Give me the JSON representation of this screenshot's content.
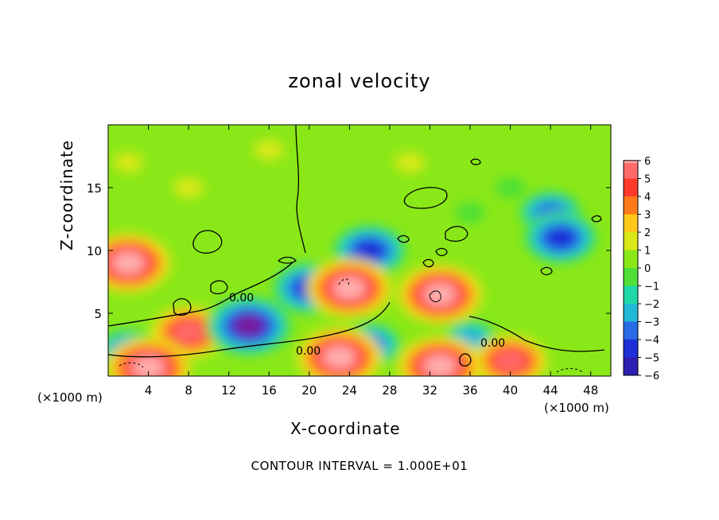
{
  "chart_data": {
    "type": "heatmap",
    "title": "zonal velocity",
    "xlabel": "X-coordinate",
    "ylabel": "Z-coordinate",
    "x_unit_label": "(×1000 m)",
    "xlim": [
      0,
      50
    ],
    "ylim": [
      0,
      20
    ],
    "x_ticks": [
      4,
      8,
      12,
      16,
      20,
      24,
      28,
      32,
      36,
      40,
      44,
      48
    ],
    "y_ticks": [
      5,
      10,
      15
    ],
    "colorbar": {
      "levels": [
        -6,
        -5,
        -4,
        -3,
        -2,
        -1,
        0,
        1,
        2,
        3,
        4,
        5,
        6
      ],
      "labels": [
        "6",
        "5",
        "4",
        "3",
        "2",
        "1",
        "0",
        "−1",
        "−2",
        "−3",
        "−4",
        "−5",
        "−6"
      ],
      "colors": [
        "#7a1f9a",
        "#2e1fb0",
        "#1e2fd8",
        "#2a6be8",
        "#22b8d8",
        "#20d8a8",
        "#4ee036",
        "#8ae818",
        "#d8e818",
        "#ffc81a",
        "#ff7a1a",
        "#ff3a2a",
        "#ff6a6a",
        "#ffb0b0"
      ]
    },
    "contour_labels": [
      "0.00",
      "0.00",
      "0.00"
    ],
    "contour_interval_note": "CONTOUR INTERVAL = 1.000E+01",
    "features": [
      {
        "kind": "max",
        "x": 2,
        "z": 9,
        "value": 6
      },
      {
        "kind": "max",
        "x": 24,
        "z": 7,
        "value": 6
      },
      {
        "kind": "max",
        "x": 33,
        "z": 6.5,
        "value": 6
      },
      {
        "kind": "max",
        "x": 23,
        "z": 1.5,
        "value": 6
      },
      {
        "kind": "max",
        "x": 4,
        "z": 0.7,
        "value": 6
      },
      {
        "kind": "max",
        "x": 33,
        "z": 0.8,
        "value": 6
      },
      {
        "kind": "max",
        "x": 40,
        "z": 1.2,
        "value": 5
      },
      {
        "kind": "max",
        "x": 8,
        "z": 3.5,
        "value": 5
      },
      {
        "kind": "min",
        "x": 14,
        "z": 4,
        "value": -6
      },
      {
        "kind": "min",
        "x": 20,
        "z": 7,
        "value": -5
      },
      {
        "kind": "min",
        "x": 26,
        "z": 10,
        "value": -5
      },
      {
        "kind": "min",
        "x": 45,
        "z": 11,
        "value": -5
      },
      {
        "kind": "min",
        "x": 44,
        "z": 13,
        "value": -4
      },
      {
        "kind": "min",
        "x": 26,
        "z": 2.5,
        "value": -4
      },
      {
        "kind": "min",
        "x": 2,
        "z": 2,
        "value": -4
      },
      {
        "kind": "min",
        "x": 36,
        "z": 3,
        "value": -3
      },
      {
        "kind": "max",
        "x": 2,
        "z": 17,
        "value": 1
      },
      {
        "kind": "max",
        "x": 8,
        "z": 15,
        "value": 1
      },
      {
        "kind": "max",
        "x": 16,
        "z": 18,
        "value": 0.8
      },
      {
        "kind": "max",
        "x": 30,
        "z": 17,
        "value": 0.5
      },
      {
        "kind": "min",
        "x": 40,
        "z": 15,
        "value": -1
      },
      {
        "kind": "min",
        "x": 36,
        "z": 13,
        "value": -0.8
      }
    ]
  }
}
